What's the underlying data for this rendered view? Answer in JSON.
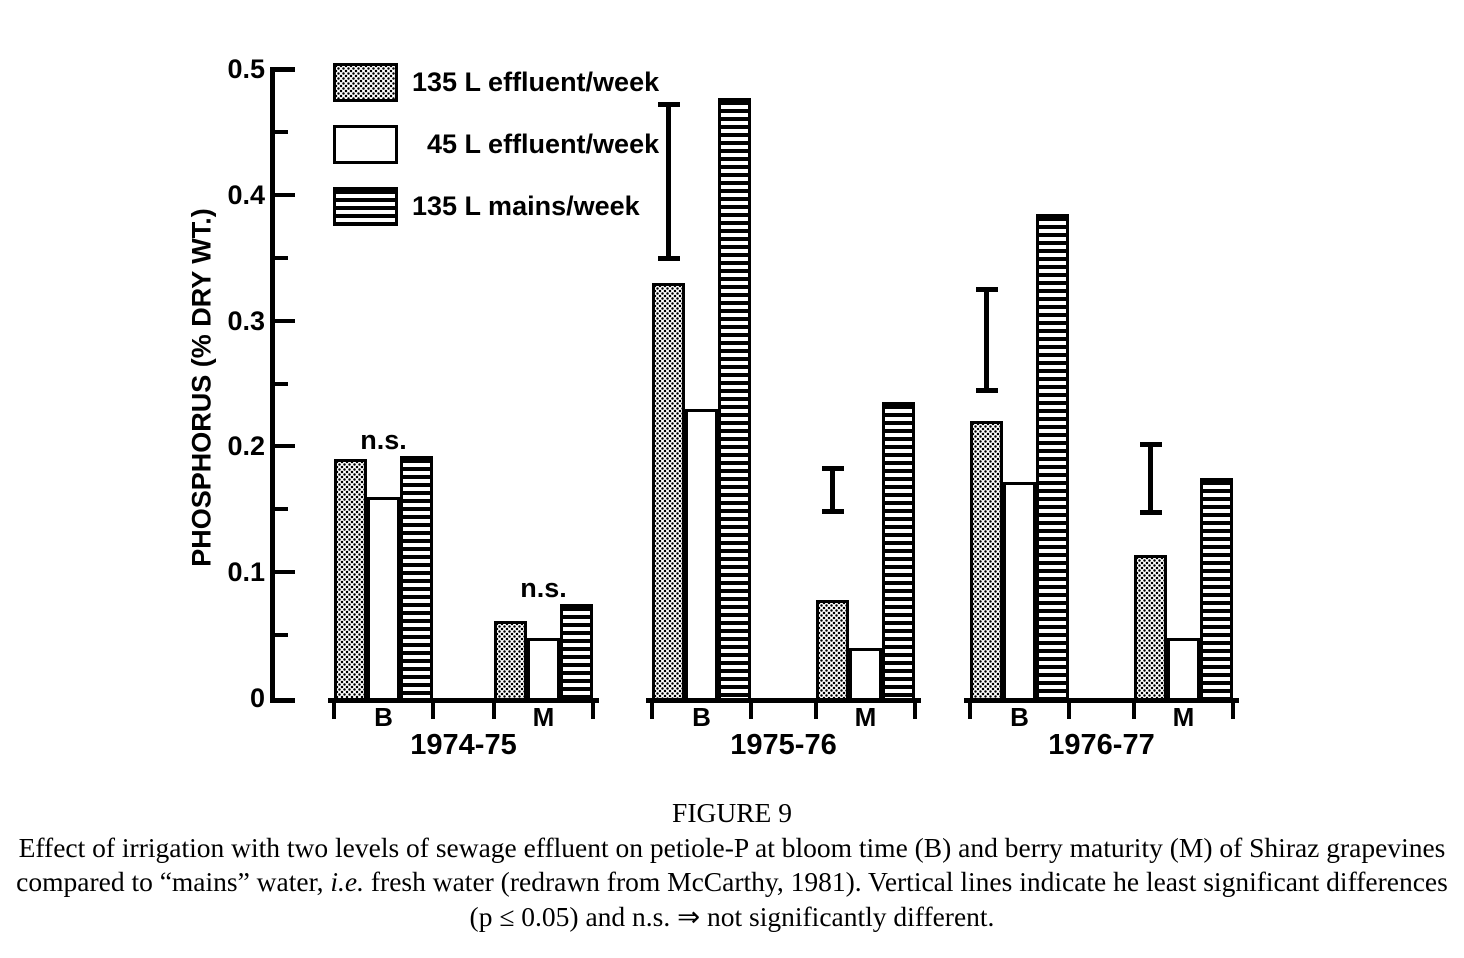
{
  "figure_caption": {
    "title": "FIGURE 9",
    "line1": "Effect of irrigation with two levels of sewage effluent on petiole-P at bloom time (B) and berry maturity (M) of Shiraz grapevines",
    "line2_pre": "compared to “mains” water, ",
    "line2_italic": "i.e.",
    "line2_post": " fresh water (redrawn from McCarthy, 1981). Vertical lines indicate he least significant differences",
    "line3": "(p ≤ 0.05) and n.s. ⇒ not significantly different."
  },
  "chart_data": {
    "type": "bar",
    "title": "",
    "xlabel": "",
    "ylabel": "PHOSPHORUS (% DRY WT.)",
    "ylim": [
      0,
      0.5
    ],
    "ytick_step": 0.1,
    "yminor_tick_step": 0.05,
    "ytick_labels": [
      "0",
      "0.1",
      "0.2",
      "0.3",
      "0.4",
      "0.5"
    ],
    "grid": false,
    "legend_position": "top-left",
    "legend": [
      {
        "label": "135 L effluent/week",
        "pattern": "stipple"
      },
      {
        "label": " 45 L effluent/week",
        "pattern": "open"
      },
      {
        "label": "135 L mains/week",
        "pattern": "hlines"
      }
    ],
    "series_names": [
      "135 L effluent/week",
      "45 L effluent/week",
      "135 L mains/week"
    ],
    "groups": [
      {
        "label": "1974-75",
        "clusters": [
          {
            "label": "B",
            "values": [
              0.19,
              0.16,
              0.192
            ],
            "annotation": "n.s."
          },
          {
            "label": "M",
            "values": [
              0.061,
              0.048,
              0.075
            ],
            "annotation": "n.s."
          }
        ]
      },
      {
        "label": "1975-76",
        "clusters": [
          {
            "label": "B",
            "values": [
              0.33,
              0.23,
              0.477
            ],
            "lsd_bar": {
              "low": 0.35,
              "high": 0.472
            }
          },
          {
            "label": "M",
            "values": [
              0.078,
              0.04,
              0.235
            ],
            "lsd_bar": {
              "low": 0.149,
              "high": 0.183
            }
          }
        ]
      },
      {
        "label": "1976-77",
        "clusters": [
          {
            "label": "B",
            "values": [
              0.22,
              0.172,
              0.385
            ],
            "lsd_bar": {
              "low": 0.245,
              "high": 0.325
            }
          },
          {
            "label": "M",
            "values": [
              0.114,
              0.048,
              0.175
            ],
            "lsd_bar": {
              "low": 0.148,
              "high": 0.202
            }
          }
        ]
      }
    ]
  }
}
